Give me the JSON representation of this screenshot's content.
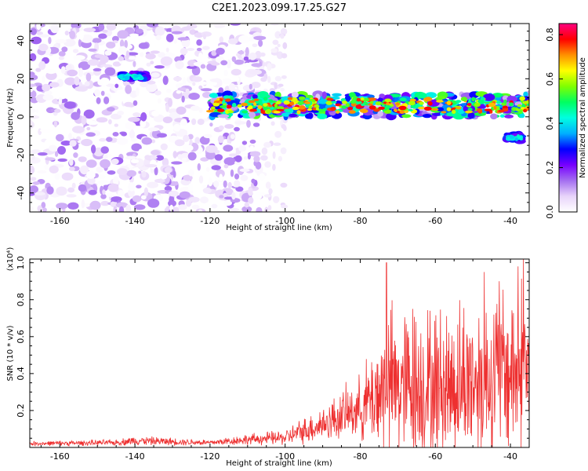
{
  "title": "C2E1.2023.099.17.25.G27",
  "chart_data": [
    {
      "type": "heatmap",
      "xlabel": "Height of straight line (km)",
      "ylabel": "Frequency (Hz)",
      "xlim": [
        -168,
        -35
      ],
      "ylim": [
        -50,
        49
      ],
      "x_ticks": [
        -160,
        -140,
        -120,
        -100,
        -80,
        -60,
        -40
      ],
      "y_ticks": [
        -40,
        -20,
        0,
        20,
        40
      ],
      "colorbar": {
        "label": "Normalized spectral amplitude",
        "range": [
          0,
          0.85
        ],
        "ticks": [
          0.0,
          0.2,
          0.4,
          0.6,
          0.8
        ],
        "colormap": [
          "#ffffff",
          "#e8d4fa",
          "#a46ef0",
          "#7700ff",
          "#0000ff",
          "#00b0ff",
          "#00ffe0",
          "#00ff60",
          "#80ff00",
          "#ffff00",
          "#ff9000",
          "#ff0000",
          "#ff0080"
        ]
      },
      "regions": [
        {
          "x": [
            -168,
            -106
          ],
          "y": [
            -50,
            49
          ],
          "amplitude_range": [
            0.0,
            0.15
          ],
          "note": "diffuse purple noise"
        },
        {
          "x": [
            -144,
            -137
          ],
          "y": [
            19,
            23
          ],
          "amplitude_range": [
            0.3,
            0.45
          ]
        },
        {
          "x": [
            -120,
            -35
          ],
          "y": [
            0,
            12
          ],
          "amplitude_range": [
            0.1,
            0.8
          ]
        },
        {
          "x": [
            -41,
            -37
          ],
          "y": [
            -13,
            -9
          ],
          "amplitude_range": [
            0.3,
            0.45
          ]
        }
      ]
    },
    {
      "type": "line",
      "xlabel": "Height of straight line (km)",
      "ylabel": "SNR (10 * v/v)",
      "y_multiplier": "(x10⁴)",
      "xlim": [
        -168,
        -35
      ],
      "ylim": [
        0,
        1.02
      ],
      "x_ticks": [
        -160,
        -140,
        -120,
        -100,
        -80,
        -60,
        -40
      ],
      "y_ticks": [
        0.2,
        0.4,
        0.6,
        0.8,
        1.0
      ],
      "series": [
        {
          "color": "#ee3030",
          "envelope": [
            {
              "x": -168,
              "mean": 0.02,
              "spread": 0.015
            },
            {
              "x": -145,
              "mean": 0.025,
              "spread": 0.02
            },
            {
              "x": -140,
              "mean": 0.035,
              "spread": 0.03
            },
            {
              "x": -120,
              "mean": 0.025,
              "spread": 0.02
            },
            {
              "x": -110,
              "mean": 0.04,
              "spread": 0.035
            },
            {
              "x": -100,
              "mean": 0.05,
              "spread": 0.05
            },
            {
              "x": -90,
              "mean": 0.12,
              "spread": 0.12
            },
            {
              "x": -80,
              "mean": 0.2,
              "spread": 0.2
            },
            {
              "x": -73,
              "mean": 0.3,
              "spread": 0.5
            },
            {
              "x": -60,
              "mean": 0.3,
              "spread": 0.5
            },
            {
              "x": -45,
              "mean": 0.35,
              "spread": 0.55
            },
            {
              "x": -35,
              "mean": 0.4,
              "spread": 0.6
            }
          ],
          "peaks": [
            {
              "x": -73,
              "y": 1.0
            },
            {
              "x": -66,
              "y": 0.75
            },
            {
              "x": -47,
              "y": 0.95
            },
            {
              "x": -43,
              "y": 0.9
            },
            {
              "x": -38,
              "y": 0.98
            },
            {
              "x": -36.5,
              "y": 1.02
            }
          ]
        }
      ]
    }
  ]
}
